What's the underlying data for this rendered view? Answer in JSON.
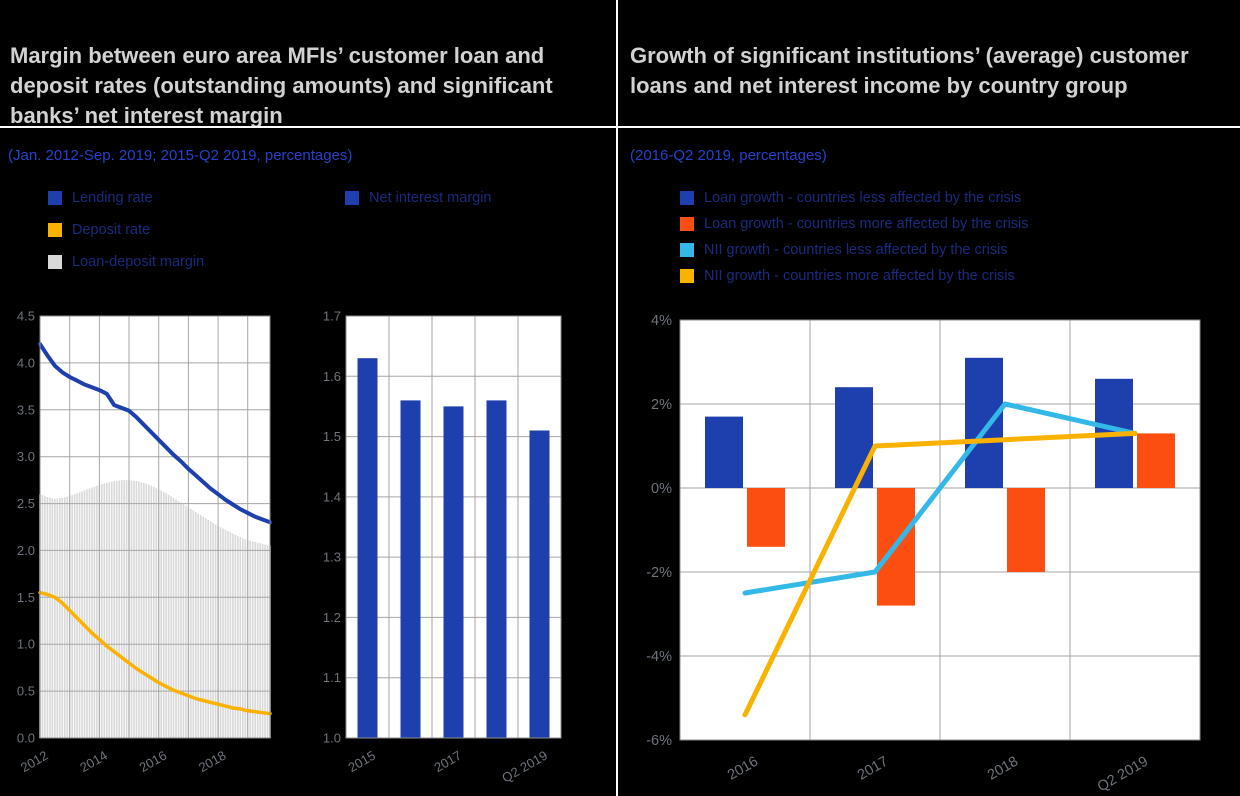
{
  "colors": {
    "background": "#000000",
    "title": "#d2d2d2",
    "subtitle": "#2741cc",
    "legend_text": "#1b2a7d",
    "tick_text": "#6e737c",
    "plot_bg": "#ffffff",
    "grid": "#a6a6a6",
    "border": "#8c8c8c",
    "blue": "#1e3fae",
    "yellow": "#f9b200",
    "gray": "#d8d8d8",
    "orange": "#fb4e10",
    "cyan": "#33b8e8"
  },
  "left": {
    "title": "Margin between euro area MFIs’ customer loan and deposit rates (outstanding amounts) and significant banks’ net interest margin",
    "subtitle": "(Jan. 2012-Sep. 2019; 2015-Q2 2019, percentages)",
    "legend": [
      {
        "label": "Lending rate",
        "color_key": "blue"
      },
      {
        "label": "Deposit rate",
        "color_key": "yellow"
      },
      {
        "label": "Loan-deposit margin",
        "color_key": "gray"
      },
      {
        "label": "Net interest margin",
        "color_key": "blue"
      }
    ]
  },
  "right": {
    "title": "Growth of significant institutions’ (average) customer loans and net interest income by country group",
    "subtitle": "(2016-Q2 2019, percentages)",
    "legend": [
      {
        "label": "Loan growth - countries less affected by the crisis",
        "color_key": "blue"
      },
      {
        "label": "Loan growth - countries more affected by the crisis",
        "color_key": "orange"
      },
      {
        "label": "NII growth - countries less affected by the crisis",
        "color_key": "cyan"
      },
      {
        "label": "NII growth - countries more affected by the crisis",
        "color_key": "yellow"
      }
    ]
  },
  "chart_data": [
    {
      "id": "rates-and-margin",
      "type": "line",
      "note": "lines: Lending rate, Deposit rate; bars: Loan-deposit margin; x = decimal years Jan 2012 - Sep 2019",
      "x": [
        2012.0,
        2012.25,
        2012.5,
        2012.75,
        2013.0,
        2013.25,
        2013.5,
        2013.75,
        2014.0,
        2014.25,
        2014.5,
        2014.75,
        2015.0,
        2015.25,
        2015.5,
        2015.75,
        2016.0,
        2016.25,
        2016.5,
        2016.75,
        2017.0,
        2017.25,
        2017.5,
        2017.75,
        2018.0,
        2018.25,
        2018.5,
        2018.75,
        2019.0,
        2019.25,
        2019.5,
        2019.75
      ],
      "series": [
        {
          "name": "Lending rate",
          "type": "line",
          "color_key": "blue",
          "values": [
            4.2,
            4.08,
            3.97,
            3.9,
            3.85,
            3.81,
            3.77,
            3.74,
            3.71,
            3.67,
            3.55,
            3.52,
            3.49,
            3.42,
            3.34,
            3.26,
            3.18,
            3.1,
            3.02,
            2.95,
            2.87,
            2.8,
            2.73,
            2.66,
            2.6,
            2.54,
            2.49,
            2.44,
            2.4,
            2.36,
            2.33,
            2.3
          ]
        },
        {
          "name": "Deposit rate",
          "type": "line",
          "color_key": "yellow",
          "values": [
            1.55,
            1.53,
            1.5,
            1.44,
            1.36,
            1.28,
            1.2,
            1.12,
            1.05,
            0.98,
            0.92,
            0.86,
            0.8,
            0.74,
            0.69,
            0.64,
            0.59,
            0.55,
            0.51,
            0.48,
            0.45,
            0.42,
            0.4,
            0.38,
            0.36,
            0.34,
            0.32,
            0.31,
            0.29,
            0.28,
            0.27,
            0.26
          ]
        },
        {
          "name": "Loan-deposit margin",
          "type": "bar",
          "color_key": "gray",
          "values": [
            2.6,
            2.57,
            2.55,
            2.56,
            2.58,
            2.61,
            2.64,
            2.67,
            2.7,
            2.72,
            2.74,
            2.75,
            2.75,
            2.74,
            2.72,
            2.69,
            2.65,
            2.61,
            2.56,
            2.51,
            2.46,
            2.41,
            2.36,
            2.31,
            2.26,
            2.22,
            2.18,
            2.14,
            2.11,
            2.09,
            2.07,
            2.05
          ]
        }
      ],
      "ylim": [
        0.0,
        4.5
      ],
      "ytick_step": 0.5,
      "ytick_labels": [
        "4.5",
        "4.0",
        "3.5",
        "3.0",
        "2.5",
        "2.0",
        "1.5",
        "1.0",
        "0.5",
        "0.0"
      ],
      "xticks": [
        {
          "value": 2012,
          "label": "2012"
        },
        {
          "value": 2014,
          "label": "2014"
        },
        {
          "value": 2016,
          "label": "2016"
        },
        {
          "value": 2018,
          "label": "2018"
        }
      ],
      "grid": true
    },
    {
      "id": "net-interest-margin",
      "type": "bar",
      "categories": [
        "2015",
        "2016",
        "2017",
        "2018",
        "Q2 2019"
      ],
      "values": [
        1.63,
        1.56,
        1.55,
        1.56,
        1.51
      ],
      "bar_color_key": "blue",
      "ylim": [
        1.0,
        1.7
      ],
      "ytick_step": 0.1,
      "ytick_labels": [
        "1.7",
        "1.6",
        "1.5",
        "1.4",
        "1.3",
        "1.2",
        "1.1",
        "1.0"
      ],
      "xticks_shown": [
        {
          "index": 0,
          "label": "2015"
        },
        {
          "index": 2,
          "label": "2017"
        },
        {
          "index": 4,
          "label": "Q2 2019"
        }
      ],
      "grid": true
    },
    {
      "id": "growth-by-country-group",
      "type": "bar",
      "categories": [
        "2016",
        "2017",
        "2018",
        "Q2 2019"
      ],
      "series": [
        {
          "name": "Loan growth - countries less affected by the crisis",
          "type": "bar",
          "color_key": "blue",
          "values": [
            1.7,
            2.4,
            3.1,
            2.6
          ]
        },
        {
          "name": "Loan growth - countries more affected by the crisis",
          "type": "bar",
          "color_key": "orange",
          "values": [
            -1.4,
            -2.8,
            -2.0,
            1.3
          ]
        },
        {
          "name": "NII growth - countries less affected by the crisis",
          "type": "line",
          "color_key": "cyan",
          "values": [
            -2.5,
            -2.0,
            2.0,
            1.3
          ]
        },
        {
          "name": "NII growth - countries more affected by the crisis",
          "type": "line",
          "color_key": "yellow",
          "values": [
            -5.4,
            1.0,
            1.15,
            1.3
          ]
        }
      ],
      "ylim": [
        -6,
        4
      ],
      "ytick_step": 2,
      "ytick_labels": [
        "4%",
        "2%",
        "0%",
        "-2%",
        "-4%",
        "-6%"
      ],
      "grid": true
    }
  ]
}
